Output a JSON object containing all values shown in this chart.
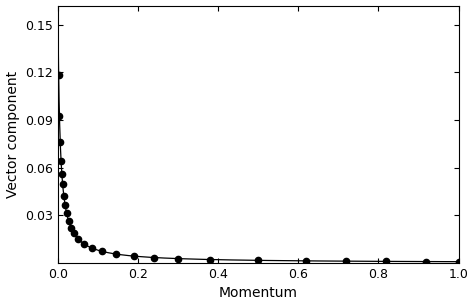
{
  "title": "",
  "xlabel": "Momentum",
  "ylabel": "Vector component",
  "xlim": [
    0,
    1.0
  ],
  "ylim": [
    0,
    0.162
  ],
  "yticks": [
    0.03,
    0.06,
    0.09,
    0.12,
    0.15
  ],
  "xticks": [
    0,
    0.2,
    0.4,
    0.6,
    0.8,
    1.0
  ],
  "line_color": "#000000",
  "marker_color": "#000000",
  "marker_size": 4.5,
  "background_color": "#ffffff",
  "figsize": [
    4.74,
    3.06
  ],
  "dpi": 100,
  "a_val": 0.00085,
  "b_val": 0.0052,
  "x_dots": [
    0.002,
    0.004,
    0.006,
    0.008,
    0.01,
    0.012,
    0.015,
    0.018,
    0.022,
    0.027,
    0.033,
    0.04,
    0.05,
    0.065,
    0.085,
    0.11,
    0.145,
    0.19,
    0.24,
    0.3,
    0.38,
    0.5,
    0.62,
    0.72,
    0.82,
    0.92,
    1.0
  ]
}
